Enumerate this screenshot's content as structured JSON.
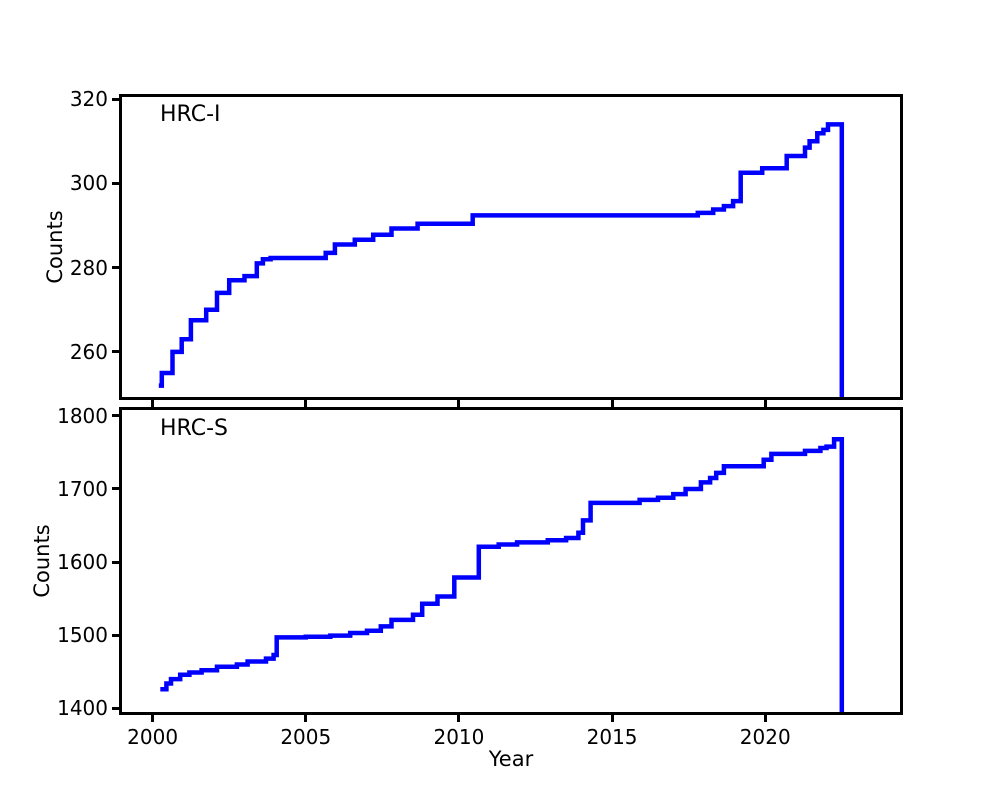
{
  "figure": {
    "background": "#ffffff",
    "axis_color": "#000000",
    "line_color": "#0000ff"
  },
  "xlabel": "Year",
  "ylabel": "Counts",
  "chart_data": [
    {
      "type": "line",
      "name": "HRC-I",
      "label": "HRC-I",
      "step": "post",
      "color": "#0000ff",
      "xlim": [
        1999.0,
        2024.4
      ],
      "ylim": [
        249.3,
        320.5
      ],
      "xticks": [
        2000,
        2005,
        2010,
        2015,
        2020
      ],
      "yticks": [
        260,
        280,
        300,
        320
      ],
      "show_x_tick_labels": false,
      "grid": false,
      "points": [
        [
          2000.2,
          252
        ],
        [
          2000.3,
          255
        ],
        [
          2000.65,
          260
        ],
        [
          2000.95,
          263
        ],
        [
          2001.25,
          267.5
        ],
        [
          2001.75,
          270
        ],
        [
          2002.1,
          274
        ],
        [
          2002.5,
          277
        ],
        [
          2003.0,
          278
        ],
        [
          2003.4,
          281
        ],
        [
          2003.6,
          282
        ],
        [
          2003.85,
          282.3
        ],
        [
          2005.65,
          283.5
        ],
        [
          2005.95,
          285.5
        ],
        [
          2006.6,
          286.6
        ],
        [
          2007.2,
          287.8
        ],
        [
          2007.8,
          289.3
        ],
        [
          2008.65,
          290.4
        ],
        [
          2010.45,
          292.4
        ],
        [
          2017.8,
          293.0
        ],
        [
          2018.3,
          293.8
        ],
        [
          2018.65,
          294.6
        ],
        [
          2018.95,
          295.8
        ],
        [
          2019.2,
          302.5
        ],
        [
          2019.9,
          303.6
        ],
        [
          2020.7,
          306.5
        ],
        [
          2021.3,
          308.5
        ],
        [
          2021.45,
          310.0
        ],
        [
          2021.7,
          311.9
        ],
        [
          2021.9,
          312.7
        ],
        [
          2022.05,
          314.0
        ]
      ],
      "end_drop_year": 2022.5,
      "final_value": 314
    },
    {
      "type": "line",
      "name": "HRC-S",
      "label": "HRC-S",
      "step": "post",
      "color": "#0000ff",
      "xlim": [
        1999.0,
        2024.4
      ],
      "ylim": [
        1395.0,
        1808.0
      ],
      "xticks": [
        2000,
        2005,
        2010,
        2015,
        2020
      ],
      "yticks": [
        1400,
        1500,
        1600,
        1700,
        1800
      ],
      "show_x_tick_labels": true,
      "grid": false,
      "points": [
        [
          2000.25,
          1426
        ],
        [
          2000.45,
          1434
        ],
        [
          2000.6,
          1440
        ],
        [
          2000.9,
          1446
        ],
        [
          2001.2,
          1449
        ],
        [
          2001.6,
          1452
        ],
        [
          2002.1,
          1457
        ],
        [
          2002.75,
          1460
        ],
        [
          2003.1,
          1464
        ],
        [
          2003.7,
          1468
        ],
        [
          2003.95,
          1473
        ],
        [
          2004.05,
          1497
        ],
        [
          2005.0,
          1498
        ],
        [
          2005.8,
          1499.5
        ],
        [
          2006.45,
          1503
        ],
        [
          2007.0,
          1506
        ],
        [
          2007.45,
          1512
        ],
        [
          2007.8,
          1521
        ],
        [
          2008.5,
          1528
        ],
        [
          2008.8,
          1543
        ],
        [
          2009.3,
          1553
        ],
        [
          2009.85,
          1579
        ],
        [
          2010.65,
          1621
        ],
        [
          2011.3,
          1624
        ],
        [
          2011.9,
          1627
        ],
        [
          2012.9,
          1630
        ],
        [
          2013.5,
          1633
        ],
        [
          2013.9,
          1640
        ],
        [
          2014.05,
          1657
        ],
        [
          2014.3,
          1681
        ],
        [
          2015.9,
          1685
        ],
        [
          2016.5,
          1688
        ],
        [
          2017.0,
          1693
        ],
        [
          2017.4,
          1700
        ],
        [
          2017.9,
          1709
        ],
        [
          2018.2,
          1715
        ],
        [
          2018.4,
          1722
        ],
        [
          2018.65,
          1731
        ],
        [
          2019.95,
          1740
        ],
        [
          2020.2,
          1748
        ],
        [
          2021.3,
          1752
        ],
        [
          2021.8,
          1756
        ],
        [
          2022.0,
          1758
        ],
        [
          2022.25,
          1768
        ]
      ],
      "end_drop_year": 2022.5,
      "final_value": 1768
    }
  ]
}
